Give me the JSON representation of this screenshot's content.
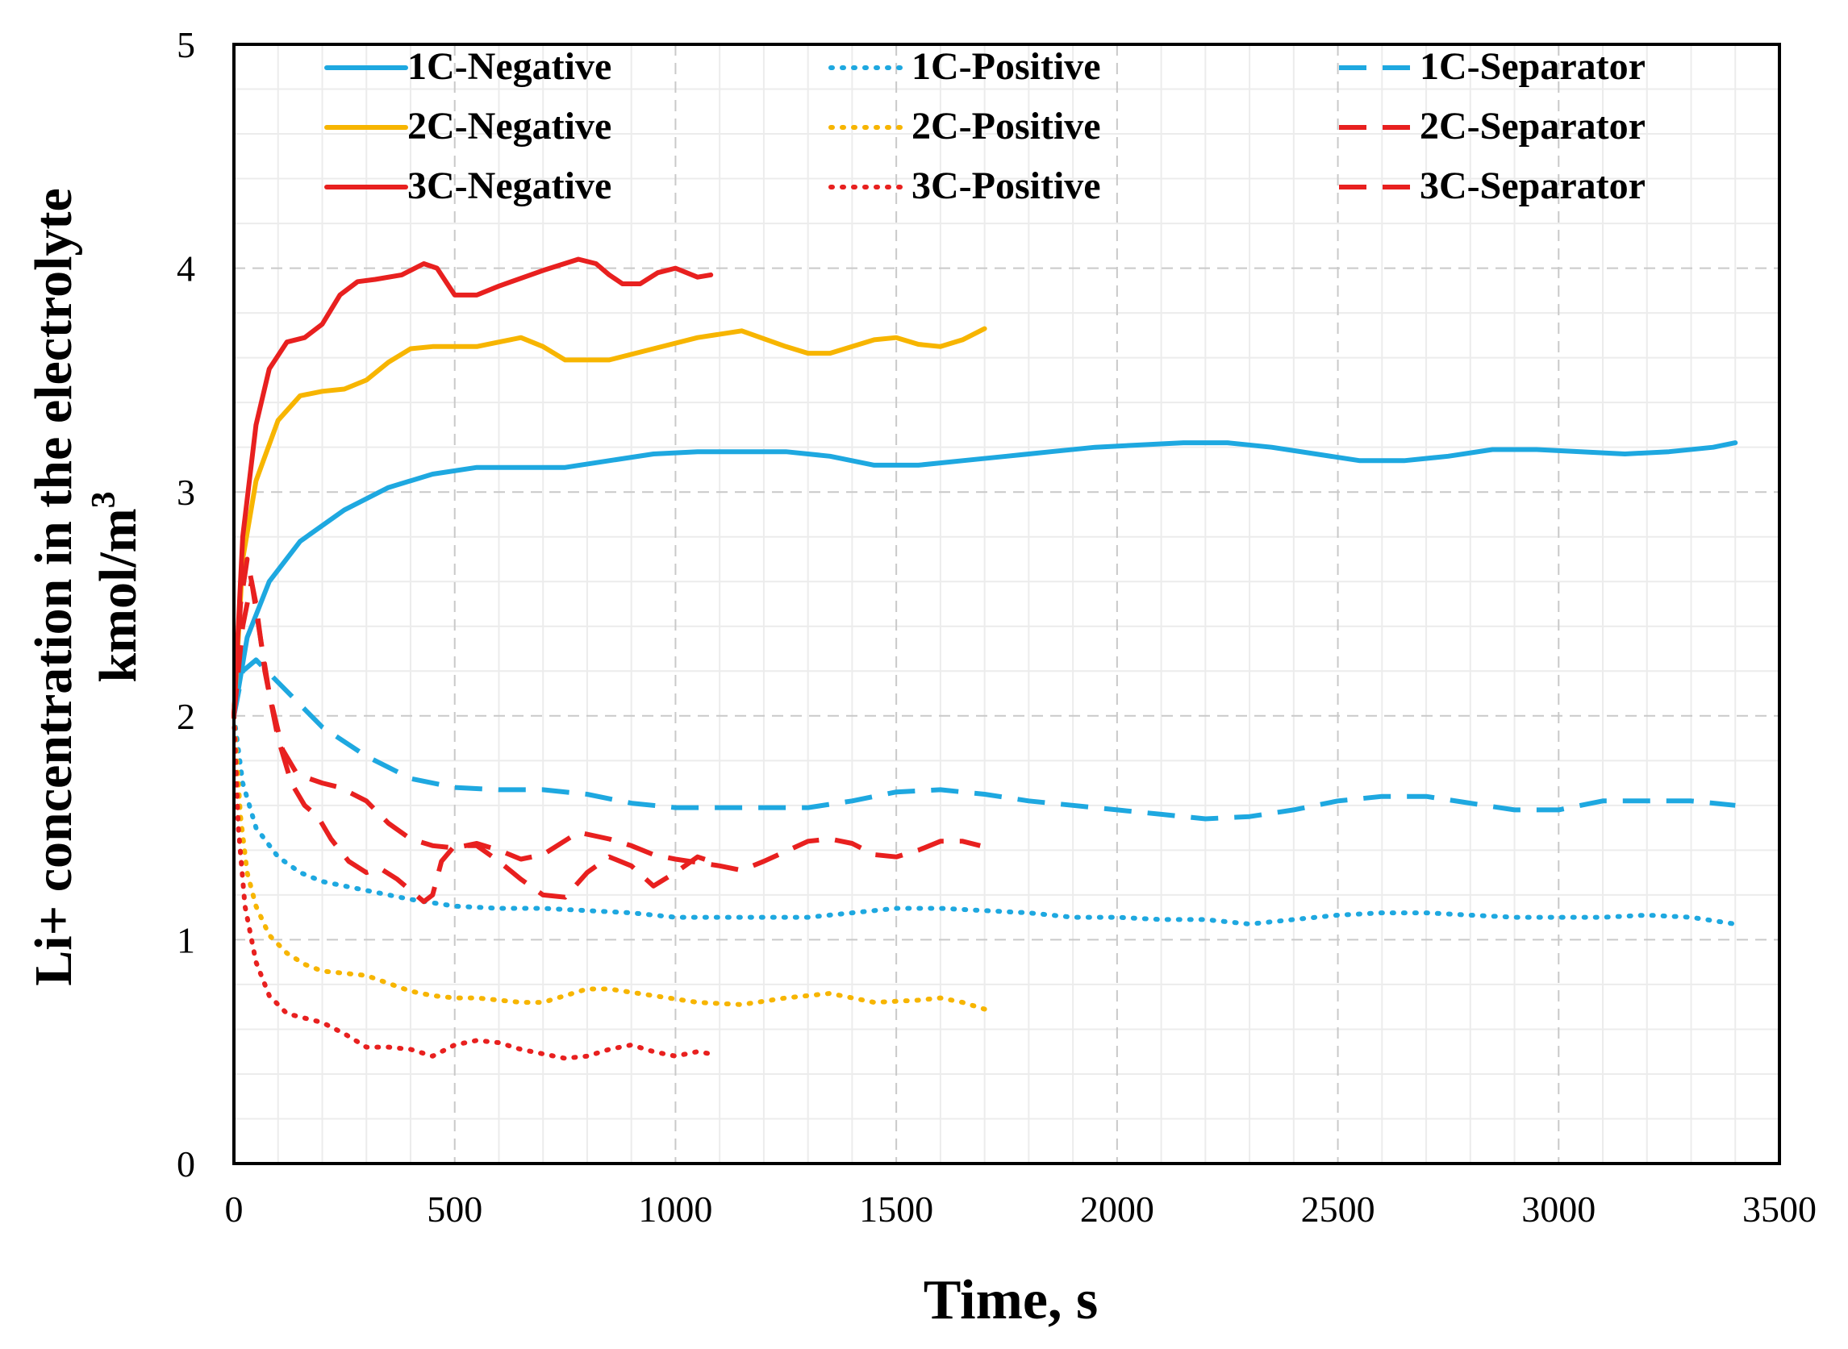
{
  "chart_data": {
    "type": "line",
    "title": "",
    "xlabel": "Time, s",
    "ylabel_line1": "Li+ concentration in the electrolyte",
    "ylabel_line2_base": "kmol/m",
    "ylabel_line2_sup": "3",
    "xlim": [
      0,
      3500
    ],
    "ylim": [
      0,
      5
    ],
    "xticks": [
      0,
      500,
      1000,
      1500,
      2000,
      2500,
      3000,
      3500
    ],
    "yticks": [
      0,
      1,
      2,
      3,
      4,
      5
    ],
    "grid": true,
    "legend_position": "top",
    "series": [
      {
        "name": "1C-Negative",
        "color": "#1ea8e0",
        "dash": "solid",
        "x": [
          0,
          30,
          80,
          150,
          250,
          350,
          450,
          550,
          650,
          750,
          850,
          950,
          1050,
          1150,
          1250,
          1350,
          1450,
          1550,
          1650,
          1750,
          1850,
          1950,
          2050,
          2150,
          2250,
          2350,
          2450,
          2550,
          2650,
          2750,
          2850,
          2950,
          3050,
          3150,
          3250,
          3350,
          3400
        ],
        "y": [
          2.0,
          2.35,
          2.6,
          2.78,
          2.92,
          3.02,
          3.08,
          3.11,
          3.11,
          3.11,
          3.14,
          3.17,
          3.18,
          3.18,
          3.18,
          3.16,
          3.12,
          3.12,
          3.14,
          3.16,
          3.18,
          3.2,
          3.21,
          3.22,
          3.22,
          3.2,
          3.17,
          3.14,
          3.14,
          3.16,
          3.19,
          3.19,
          3.18,
          3.17,
          3.18,
          3.2,
          3.22
        ]
      },
      {
        "name": "2C-Negative",
        "color": "#f7b500",
        "dash": "solid",
        "x": [
          0,
          20,
          50,
          100,
          150,
          200,
          250,
          300,
          350,
          400,
          450,
          550,
          600,
          650,
          700,
          750,
          850,
          950,
          1050,
          1150,
          1250,
          1300,
          1350,
          1450,
          1500,
          1550,
          1600,
          1650,
          1700
        ],
        "y": [
          2.0,
          2.7,
          3.05,
          3.32,
          3.43,
          3.45,
          3.46,
          3.5,
          3.58,
          3.64,
          3.65,
          3.65,
          3.67,
          3.69,
          3.65,
          3.59,
          3.59,
          3.64,
          3.69,
          3.72,
          3.65,
          3.62,
          3.62,
          3.68,
          3.69,
          3.66,
          3.65,
          3.68,
          3.73
        ]
      },
      {
        "name": "3C-Negative",
        "color": "#e8201f",
        "dash": "solid",
        "x": [
          0,
          20,
          50,
          80,
          120,
          160,
          200,
          240,
          280,
          320,
          380,
          430,
          460,
          500,
          550,
          600,
          700,
          780,
          820,
          850,
          880,
          920,
          960,
          1000,
          1050,
          1080
        ],
        "y": [
          2.0,
          2.8,
          3.3,
          3.55,
          3.67,
          3.69,
          3.75,
          3.88,
          3.94,
          3.95,
          3.97,
          4.02,
          4.0,
          3.88,
          3.88,
          3.92,
          3.99,
          4.04,
          4.02,
          3.97,
          3.93,
          3.93,
          3.98,
          4.0,
          3.96,
          3.97
        ]
      },
      {
        "name": "1C-Positive",
        "color": "#1ea8e0",
        "dash": "dotted",
        "x": [
          0,
          20,
          50,
          100,
          150,
          200,
          300,
          400,
          500,
          600,
          700,
          800,
          900,
          1000,
          1100,
          1200,
          1300,
          1400,
          1500,
          1600,
          1700,
          1800,
          1900,
          2000,
          2100,
          2200,
          2300,
          2400,
          2500,
          2600,
          2700,
          2800,
          2900,
          3000,
          3100,
          3200,
          3300,
          3400
        ],
        "y": [
          2.0,
          1.7,
          1.5,
          1.37,
          1.3,
          1.26,
          1.22,
          1.18,
          1.15,
          1.14,
          1.14,
          1.13,
          1.12,
          1.1,
          1.1,
          1.1,
          1.1,
          1.12,
          1.14,
          1.14,
          1.13,
          1.12,
          1.1,
          1.1,
          1.09,
          1.09,
          1.07,
          1.09,
          1.11,
          1.12,
          1.12,
          1.11,
          1.1,
          1.1,
          1.1,
          1.11,
          1.1,
          1.07
        ]
      },
      {
        "name": "2C-Positive",
        "color": "#f7b500",
        "dash": "dotted",
        "x": [
          0,
          15,
          30,
          50,
          80,
          120,
          160,
          200,
          250,
          300,
          400,
          450,
          500,
          550,
          650,
          700,
          800,
          850,
          950,
          1050,
          1150,
          1250,
          1350,
          1450,
          1550,
          1600,
          1650,
          1700
        ],
        "y": [
          2.0,
          1.55,
          1.3,
          1.15,
          1.02,
          0.94,
          0.89,
          0.86,
          0.85,
          0.84,
          0.77,
          0.75,
          0.74,
          0.74,
          0.72,
          0.72,
          0.78,
          0.78,
          0.75,
          0.72,
          0.71,
          0.74,
          0.76,
          0.72,
          0.73,
          0.74,
          0.72,
          0.69
        ]
      },
      {
        "name": "3C-Positive",
        "color": "#e8201f",
        "dash": "dotted",
        "x": [
          0,
          10,
          25,
          50,
          80,
          120,
          160,
          200,
          250,
          300,
          350,
          400,
          450,
          500,
          550,
          600,
          650,
          700,
          750,
          800,
          850,
          900,
          950,
          1000,
          1050,
          1080
        ],
        "y": [
          2.0,
          1.5,
          1.15,
          0.9,
          0.75,
          0.67,
          0.65,
          0.63,
          0.58,
          0.52,
          0.52,
          0.51,
          0.48,
          0.53,
          0.55,
          0.54,
          0.51,
          0.49,
          0.47,
          0.48,
          0.51,
          0.53,
          0.5,
          0.48,
          0.5,
          0.49
        ]
      },
      {
        "name": "1C-Separator",
        "color": "#1ea8e0",
        "dash": "dashed",
        "x": [
          0,
          20,
          50,
          100,
          200,
          300,
          400,
          500,
          600,
          700,
          800,
          900,
          1000,
          1100,
          1200,
          1300,
          1400,
          1500,
          1600,
          1700,
          1800,
          1900,
          2000,
          2100,
          2200,
          2300,
          2400,
          2500,
          2600,
          2700,
          2800,
          2900,
          3000,
          3100,
          3200,
          3300,
          3400
        ],
        "y": [
          2.0,
          2.2,
          2.25,
          2.15,
          1.95,
          1.82,
          1.72,
          1.68,
          1.67,
          1.67,
          1.65,
          1.61,
          1.59,
          1.59,
          1.59,
          1.59,
          1.62,
          1.66,
          1.67,
          1.65,
          1.62,
          1.6,
          1.58,
          1.56,
          1.54,
          1.55,
          1.58,
          1.62,
          1.64,
          1.64,
          1.61,
          1.58,
          1.58,
          1.62,
          1.62,
          1.62,
          1.6
        ]
      },
      {
        "name": "2C-Separator",
        "color": "#e8201f",
        "dash": "dashed",
        "x": [
          0,
          20,
          40,
          60,
          80,
          110,
          140,
          170,
          200,
          240,
          300,
          350,
          400,
          450,
          500,
          550,
          600,
          650,
          700,
          780,
          850,
          900,
          950,
          1000,
          1100,
          1150,
          1200,
          1300,
          1350,
          1400,
          1450,
          1500,
          1550,
          1600,
          1650,
          1690
        ],
        "y": [
          2.0,
          2.4,
          2.6,
          2.35,
          2.1,
          1.85,
          1.75,
          1.72,
          1.7,
          1.68,
          1.62,
          1.52,
          1.45,
          1.42,
          1.41,
          1.43,
          1.4,
          1.36,
          1.38,
          1.48,
          1.45,
          1.42,
          1.38,
          1.36,
          1.33,
          1.31,
          1.35,
          1.44,
          1.45,
          1.43,
          1.38,
          1.37,
          1.4,
          1.44,
          1.44,
          1.42
        ]
      },
      {
        "name": "3C-Separator",
        "color": "#e8201f",
        "dash": "dashed",
        "x": [
          0,
          15,
          30,
          50,
          70,
          100,
          130,
          160,
          190,
          220,
          260,
          300,
          330,
          370,
          400,
          430,
          450,
          470,
          500,
          550,
          600,
          650,
          700,
          750,
          800,
          850,
          900,
          950,
          1000,
          1050,
          1080
        ],
        "y": [
          2.0,
          2.5,
          2.7,
          2.5,
          2.2,
          1.9,
          1.7,
          1.6,
          1.55,
          1.45,
          1.35,
          1.3,
          1.32,
          1.27,
          1.22,
          1.17,
          1.2,
          1.35,
          1.42,
          1.42,
          1.35,
          1.27,
          1.2,
          1.19,
          1.3,
          1.37,
          1.33,
          1.24,
          1.3,
          1.37,
          1.35
        ]
      }
    ]
  }
}
